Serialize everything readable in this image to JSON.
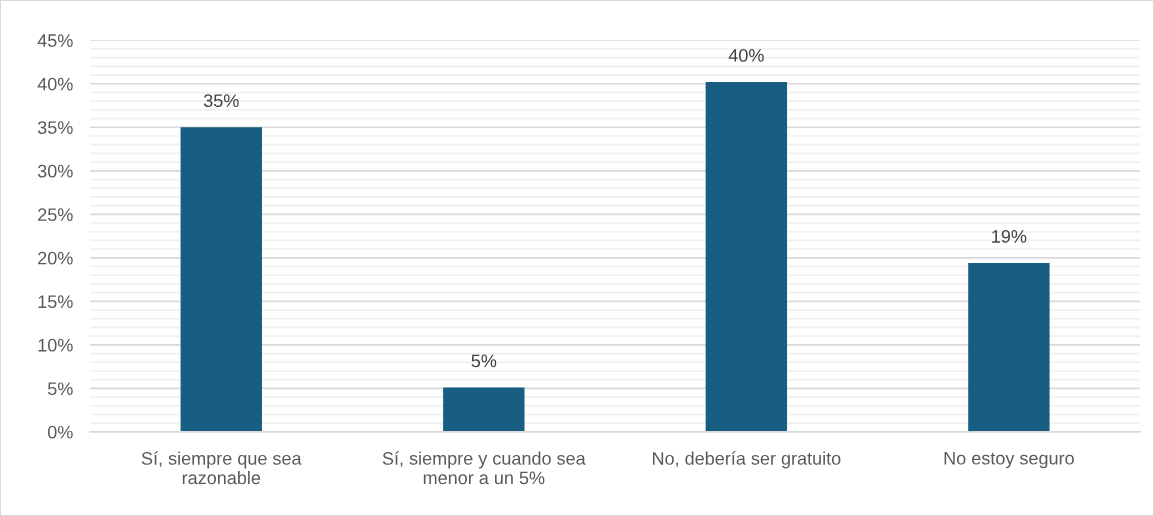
{
  "chart_data": {
    "type": "bar",
    "categories": [
      "Sí, siempre que sea\nrazonable",
      "Sí, siempre y cuando sea\nmenor a un 5%",
      "No, debería ser gratuito",
      "No estoy seguro"
    ],
    "values": [
      35,
      5.1,
      40.2,
      19.4
    ],
    "value_labels": [
      "35%",
      "5%",
      "40%",
      "19%"
    ],
    "color": "#175e82",
    "ylim": [
      0,
      45
    ],
    "yticks": [
      {
        "value": 0,
        "label": "0%"
      },
      {
        "value": 1,
        "label": null
      },
      {
        "value": 2,
        "label": null
      },
      {
        "value": 3,
        "label": null
      },
      {
        "value": 4,
        "label": null
      },
      {
        "value": 5,
        "label": "5%"
      },
      {
        "value": 6,
        "label": null
      },
      {
        "value": 7,
        "label": null
      },
      {
        "value": 8,
        "label": null
      },
      {
        "value": 9,
        "label": null
      },
      {
        "value": 10,
        "label": "10%"
      },
      {
        "value": 11,
        "label": null
      },
      {
        "value": 12,
        "label": null
      },
      {
        "value": 13,
        "label": null
      },
      {
        "value": 14,
        "label": null
      },
      {
        "value": 15,
        "label": "15%"
      },
      {
        "value": 16,
        "label": null
      },
      {
        "value": 17,
        "label": null
      },
      {
        "value": 18,
        "label": null
      },
      {
        "value": 19,
        "label": null
      },
      {
        "value": 20,
        "label": "20%"
      },
      {
        "value": 21,
        "label": null
      },
      {
        "value": 22,
        "label": null
      },
      {
        "value": 23,
        "label": null
      },
      {
        "value": 24,
        "label": null
      },
      {
        "value": 25,
        "label": "25%"
      },
      {
        "value": 26,
        "label": null
      },
      {
        "value": 27,
        "label": null
      },
      {
        "value": 28,
        "label": null
      },
      {
        "value": 29,
        "label": null
      },
      {
        "value": 30,
        "label": "30%"
      },
      {
        "value": 31,
        "label": null
      },
      {
        "value": 32,
        "label": null
      },
      {
        "value": 33,
        "label": null
      },
      {
        "value": 34,
        "label": null
      },
      {
        "value": 35,
        "label": "35%"
      },
      {
        "value": 36,
        "label": null
      },
      {
        "value": 37,
        "label": null
      },
      {
        "value": 38,
        "label": null
      },
      {
        "value": 39,
        "label": null
      },
      {
        "value": 40,
        "label": "40%"
      },
      {
        "value": 41,
        "label": null
      },
      {
        "value": 42,
        "label": null
      },
      {
        "value": 43,
        "label": null
      },
      {
        "value": 44,
        "label": null
      },
      {
        "value": 45,
        "label": "45%"
      }
    ],
    "grid": "y",
    "legend": false
  }
}
